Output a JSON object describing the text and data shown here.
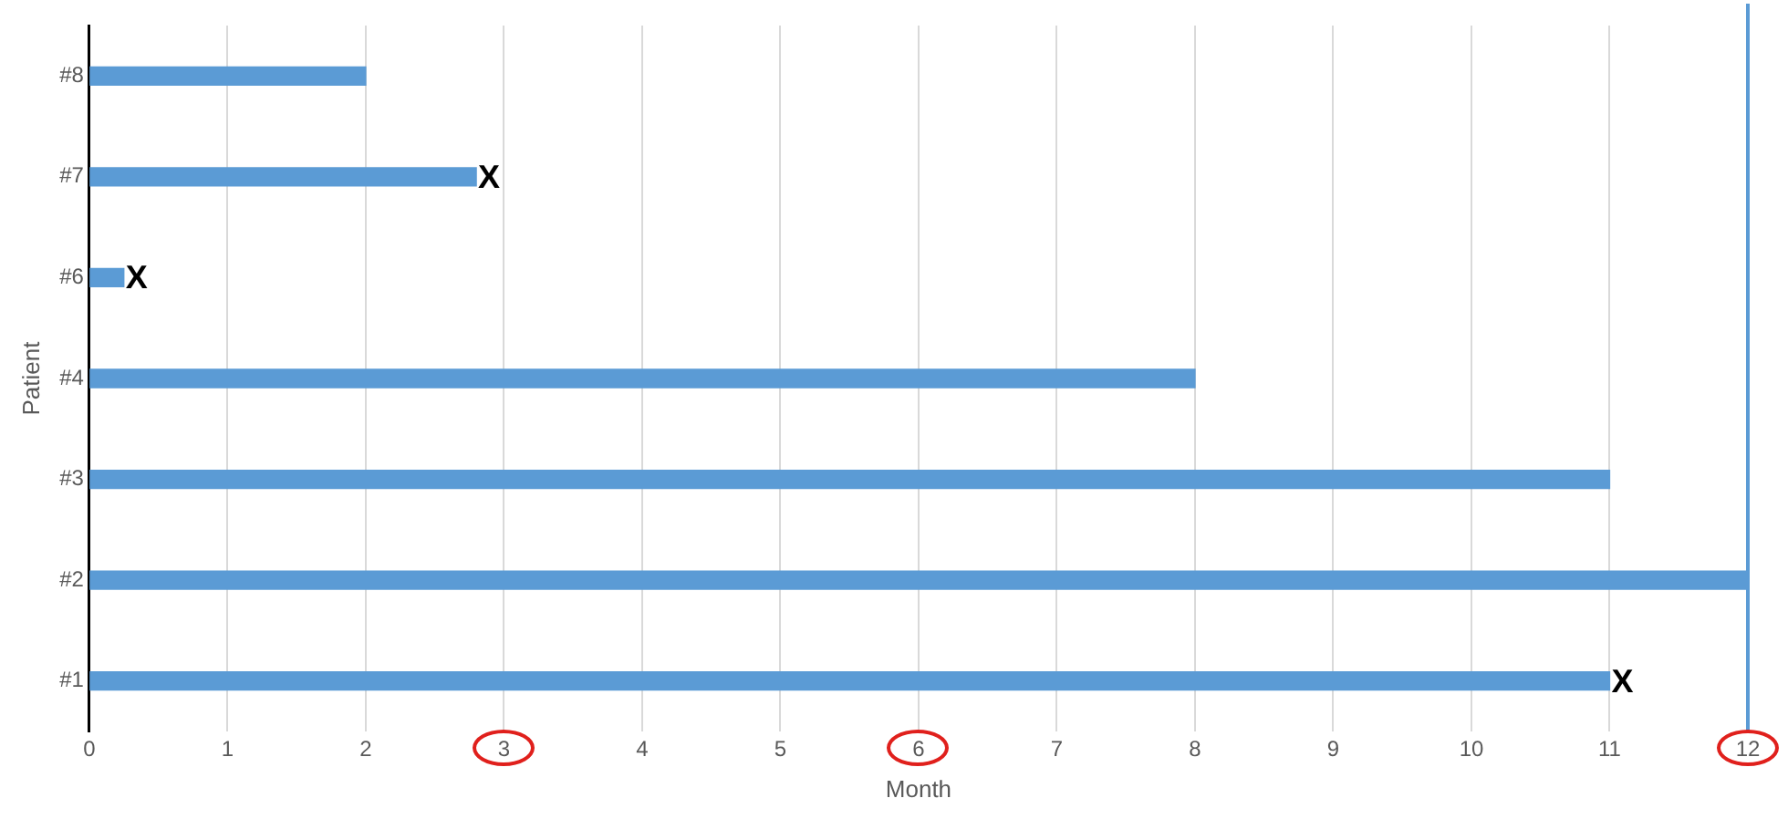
{
  "chart_data": {
    "type": "bar",
    "orientation": "horizontal",
    "xlabel": "Month",
    "ylabel": "Patient",
    "categories": [
      "#8",
      "#7",
      "#6",
      "#4",
      "#3",
      "#2",
      "#1"
    ],
    "values": [
      2,
      2.8,
      0.25,
      8,
      11,
      12,
      11
    ],
    "color": "#5b9bd5",
    "xlim": [
      0,
      12
    ],
    "xticks": [
      0,
      1,
      2,
      3,
      4,
      5,
      6,
      7,
      8,
      9,
      10,
      11,
      12
    ],
    "grid": "x",
    "legend": false,
    "ref_lines": [
      {
        "axis": "x",
        "value": 12,
        "label": null,
        "color": "#5b9bd5"
      }
    ],
    "annotations": [
      {
        "text": "X",
        "x": 2.8,
        "y": "#7"
      },
      {
        "text": "X",
        "x": 0.25,
        "y": "#6"
      },
      {
        "text": "X",
        "x": 11,
        "y": "#1"
      }
    ]
  }
}
